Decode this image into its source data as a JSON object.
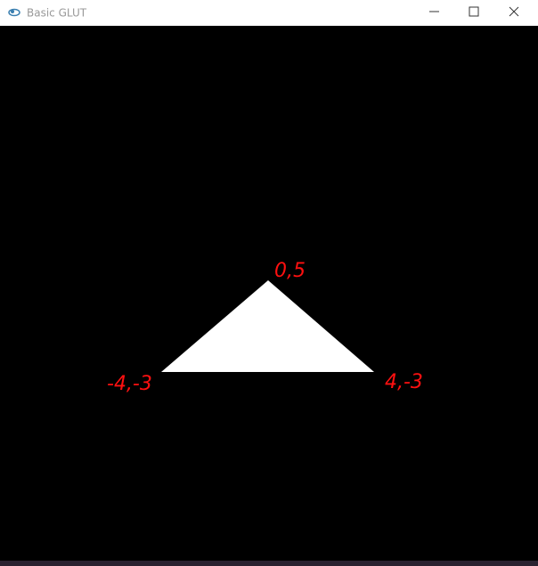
{
  "window": {
    "title": "Basic GLUT"
  },
  "annotations": {
    "top": "0,5",
    "left": "-4,-3",
    "right": "4,-3"
  }
}
